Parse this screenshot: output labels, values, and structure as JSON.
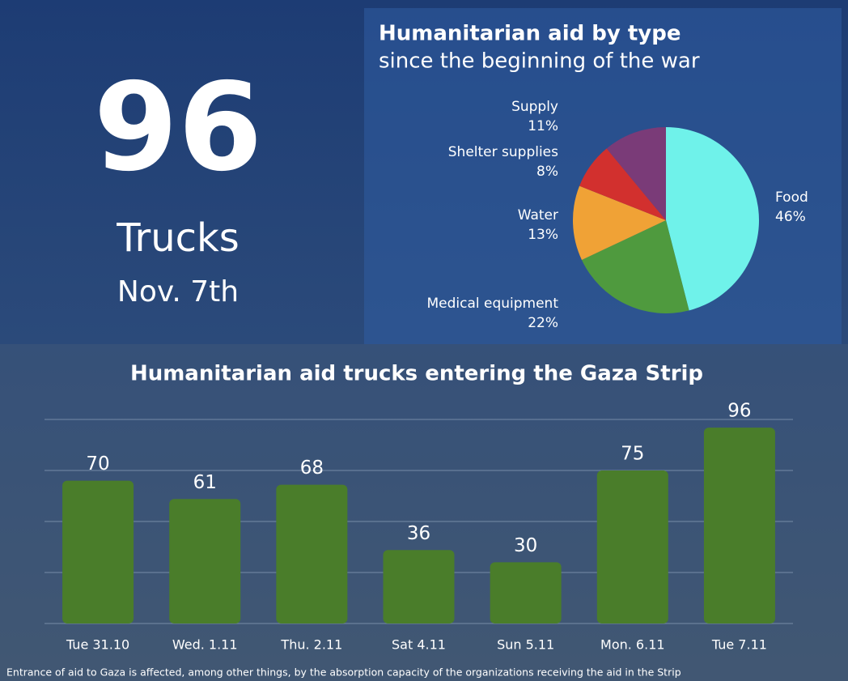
{
  "headline": {
    "number": "96",
    "unit": "Trucks",
    "date": "Nov. 7th"
  },
  "chart_data": [
    {
      "type": "pie",
      "title": "Humanitarian aid by type",
      "subtitle": "since the beginning of the war",
      "categories": [
        "Food",
        "Medical equipment",
        "Water",
        "Shelter supplies",
        "Supply"
      ],
      "values": [
        46,
        22,
        13,
        8,
        11
      ],
      "value_labels": [
        "46%",
        "22%",
        "13%",
        "8%",
        "11%"
      ],
      "colors": [
        "#6ff2ea",
        "#4f9a3e",
        "#f0a236",
        "#d2302e",
        "#7a3b78"
      ]
    },
    {
      "type": "bar",
      "title": "Humanitarian aid trucks entering the Gaza Strip",
      "categories": [
        "Tue 31.10",
        "Wed. 1.11",
        "Thu. 2.11",
        "Sat 4.11",
        "Sun 5.11",
        "Mon. 6.11",
        "Tue 7.11"
      ],
      "values": [
        70,
        61,
        68,
        36,
        30,
        75,
        96
      ],
      "color": "#4a7d2a",
      "ylim": [
        0,
        100
      ],
      "yticks": [
        0,
        25,
        50,
        75,
        100
      ],
      "grid": true,
      "tick_labels": false
    }
  ],
  "footnote": "Entrance of aid to Gaza is affected, among other things, by the absorption capacity of the organizations receiving the aid in the Strip"
}
